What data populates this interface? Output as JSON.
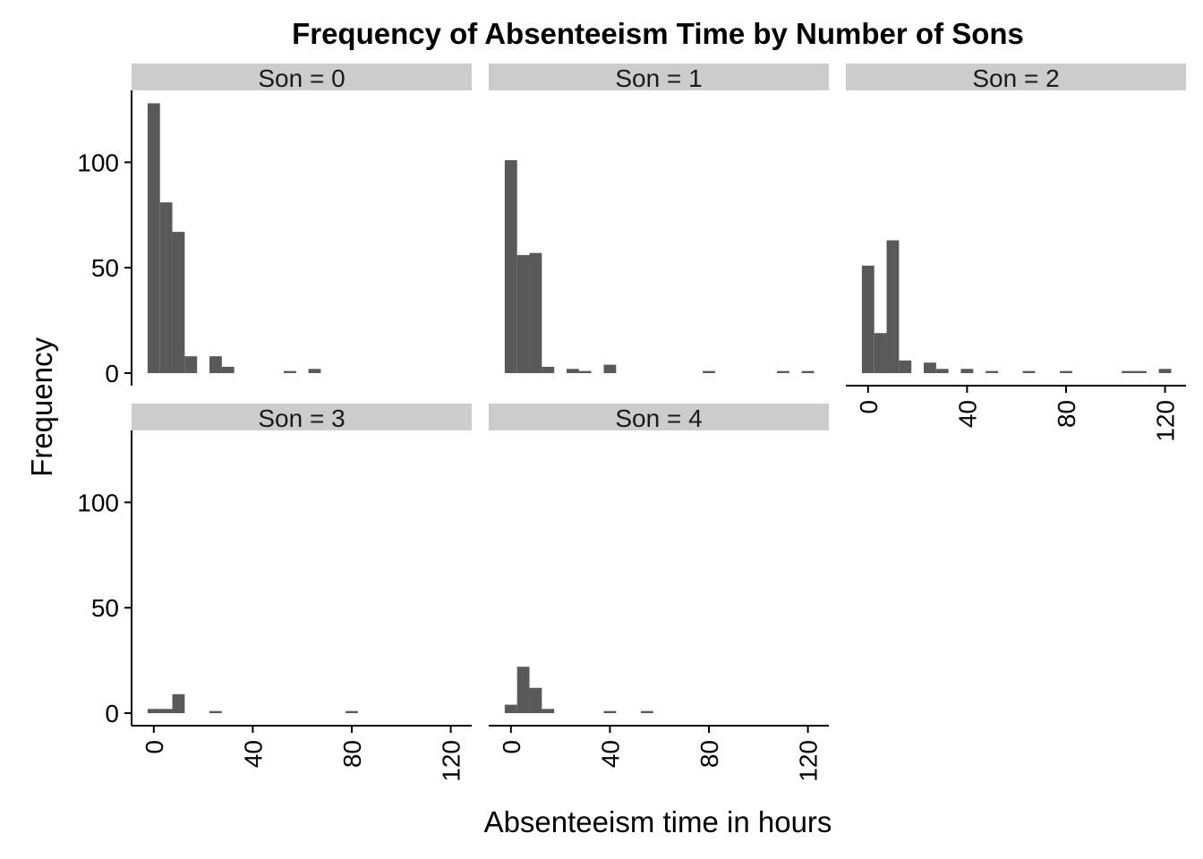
{
  "chart_data": {
    "type": "bar",
    "title": "Frequency of Absenteeism Time by Number of Sons",
    "xlabel": "Absenteeism time in hours",
    "ylabel": "Frequency",
    "xlim": [
      -5,
      120
    ],
    "ylim": [
      0,
      128
    ],
    "x_ticks": [
      0,
      40,
      80,
      120
    ],
    "y_ticks": [
      0,
      50,
      100
    ],
    "bin_width": 5,
    "grid": false,
    "colors": {
      "bar": "#595959",
      "strip": "#cccccc"
    },
    "panels": [
      {
        "label": "Son = 0",
        "bins": [
          {
            "x": 0,
            "count": 128
          },
          {
            "x": 5,
            "count": 81
          },
          {
            "x": 10,
            "count": 67
          },
          {
            "x": 15,
            "count": 8
          },
          {
            "x": 25,
            "count": 8
          },
          {
            "x": 30,
            "count": 3
          },
          {
            "x": 55,
            "count": 1
          },
          {
            "x": 65,
            "count": 2
          }
        ]
      },
      {
        "label": "Son = 1",
        "bins": [
          {
            "x": 0,
            "count": 101
          },
          {
            "x": 5,
            "count": 56
          },
          {
            "x": 10,
            "count": 57
          },
          {
            "x": 15,
            "count": 3
          },
          {
            "x": 25,
            "count": 2
          },
          {
            "x": 30,
            "count": 1
          },
          {
            "x": 40,
            "count": 4
          },
          {
            "x": 80,
            "count": 1
          },
          {
            "x": 110,
            "count": 1
          },
          {
            "x": 120,
            "count": 1
          }
        ]
      },
      {
        "label": "Son = 2",
        "bins": [
          {
            "x": 0,
            "count": 51
          },
          {
            "x": 5,
            "count": 19
          },
          {
            "x": 10,
            "count": 63
          },
          {
            "x": 15,
            "count": 6
          },
          {
            "x": 25,
            "count": 5
          },
          {
            "x": 30,
            "count": 2
          },
          {
            "x": 40,
            "count": 2
          },
          {
            "x": 50,
            "count": 1
          },
          {
            "x": 65,
            "count": 1
          },
          {
            "x": 80,
            "count": 1
          },
          {
            "x": 105,
            "count": 1
          },
          {
            "x": 110,
            "count": 1
          },
          {
            "x": 120,
            "count": 2
          }
        ]
      },
      {
        "label": "Son = 3",
        "bins": [
          {
            "x": 0,
            "count": 2
          },
          {
            "x": 5,
            "count": 2
          },
          {
            "x": 10,
            "count": 9
          },
          {
            "x": 25,
            "count": 1
          },
          {
            "x": 80,
            "count": 1
          }
        ]
      },
      {
        "label": "Son = 4",
        "bins": [
          {
            "x": 0,
            "count": 4
          },
          {
            "x": 5,
            "count": 22
          },
          {
            "x": 10,
            "count": 12
          },
          {
            "x": 15,
            "count": 2
          },
          {
            "x": 40,
            "count": 1
          },
          {
            "x": 55,
            "count": 1
          }
        ]
      }
    ]
  }
}
